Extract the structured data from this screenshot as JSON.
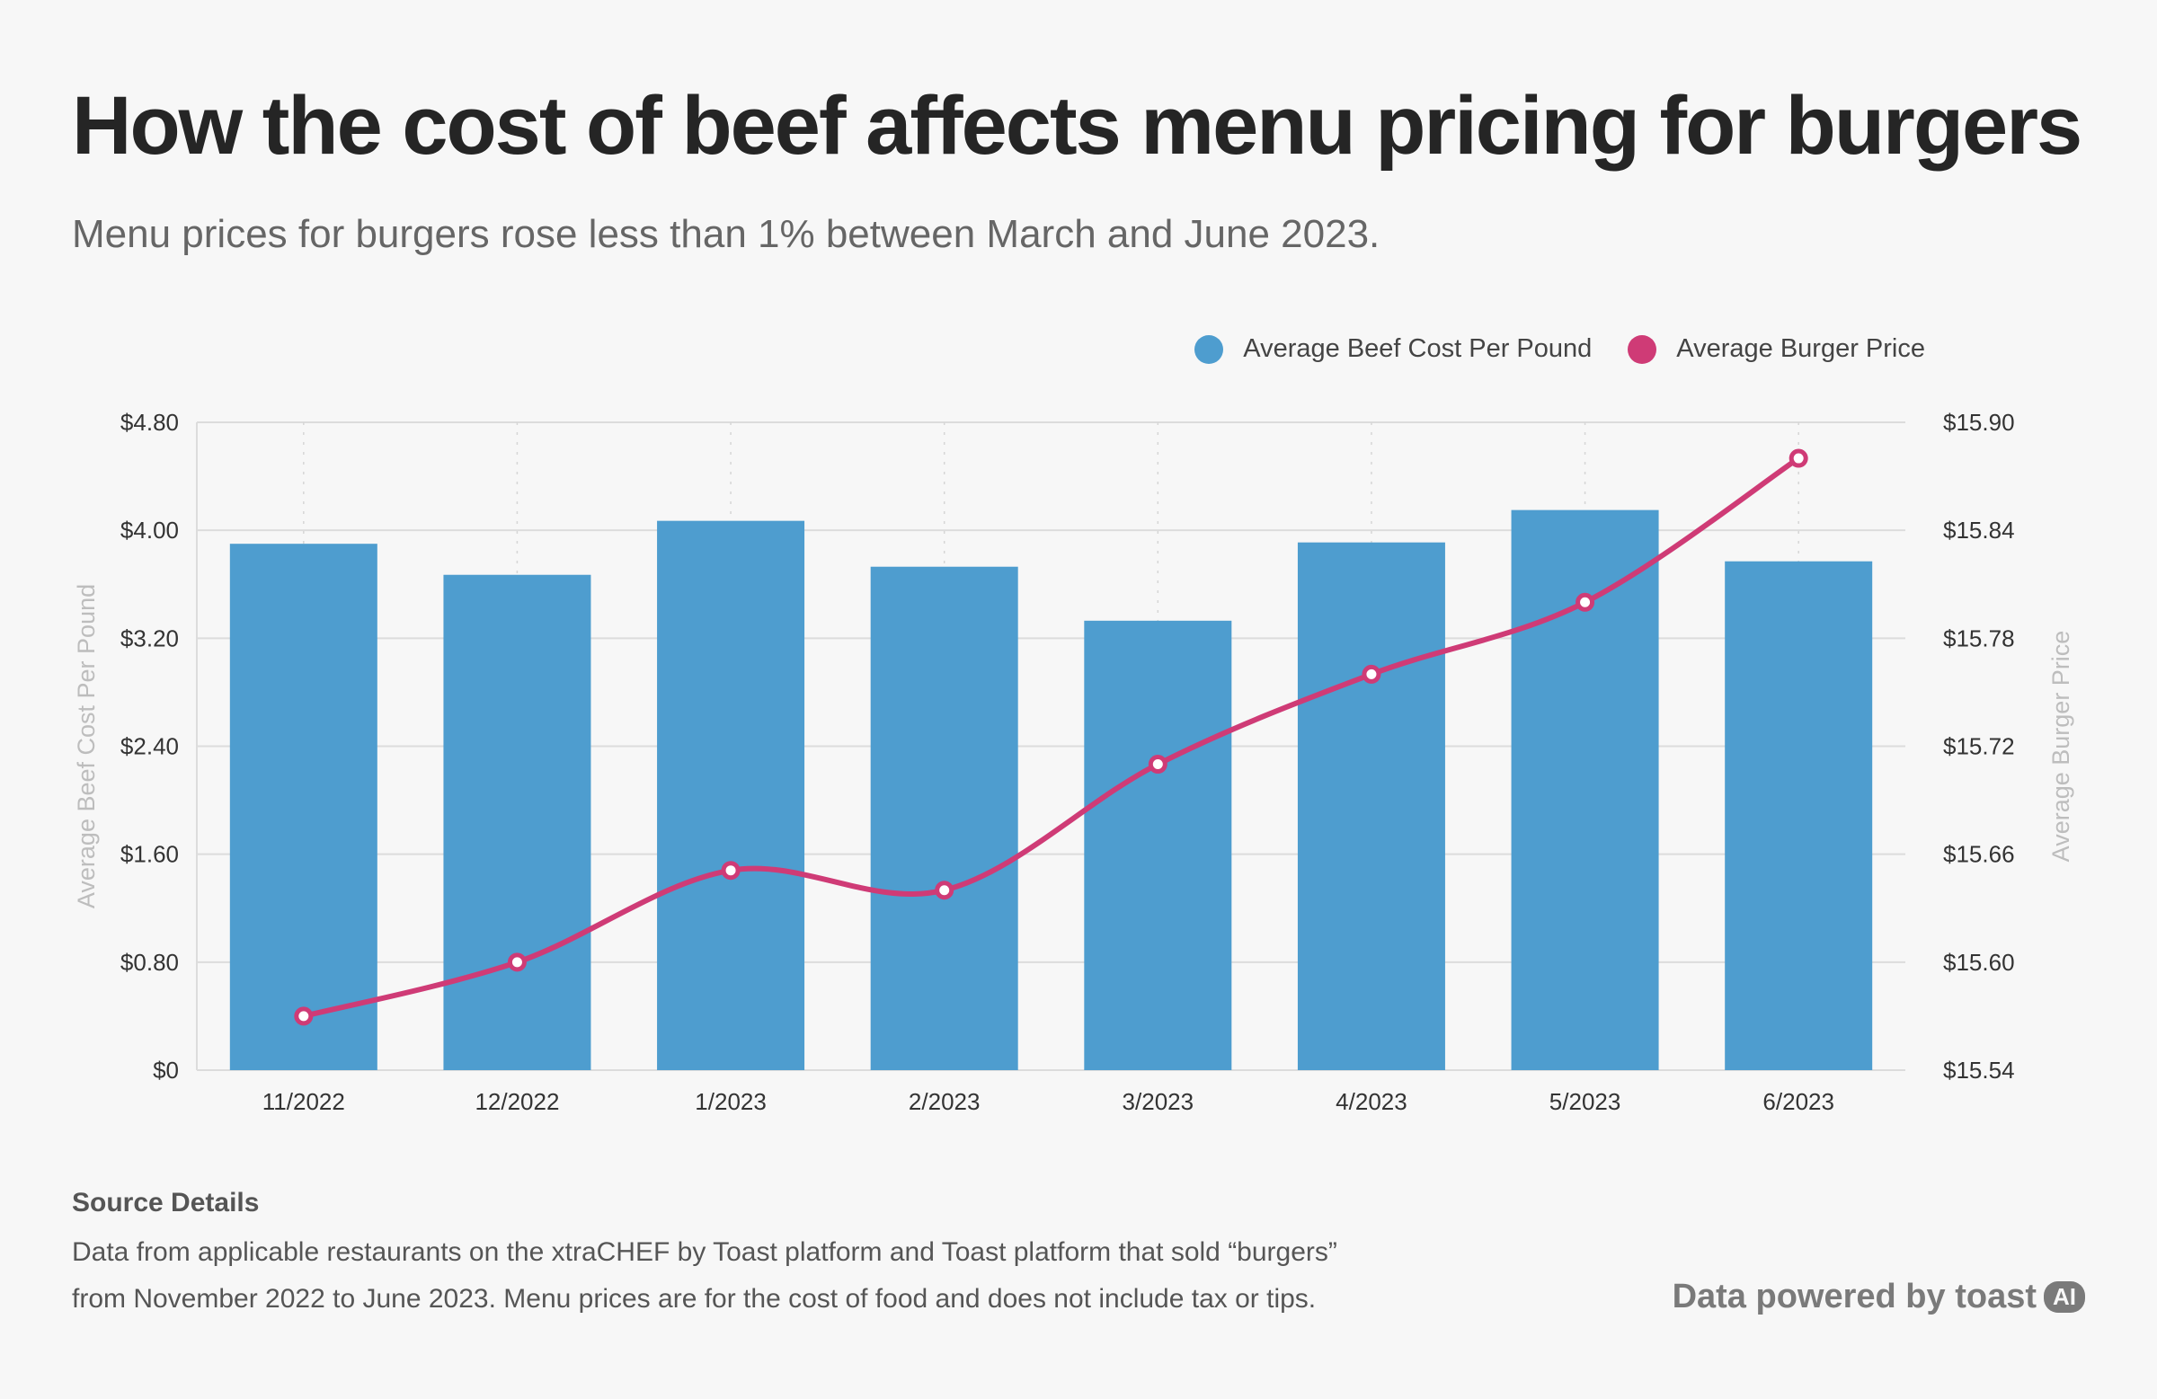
{
  "title": "How the cost of beef affects menu pricing for burgers",
  "subtitle": "Menu prices for burgers rose less than 1% between March and June 2023.",
  "colors": {
    "bar": "#4e9dcf",
    "line": "#cf3b76",
    "background": "#f7f7f7"
  },
  "chart_data": {
    "type": "bar+line",
    "categories": [
      "11/2022",
      "12/2022",
      "1/2023",
      "2/2023",
      "3/2023",
      "4/2023",
      "5/2023",
      "6/2023"
    ],
    "series": [
      {
        "name": "Average Beef Cost Per Pound",
        "type": "bar",
        "axis": "left",
        "values": [
          3.9,
          3.67,
          4.07,
          3.73,
          3.33,
          3.91,
          4.15,
          3.77
        ]
      },
      {
        "name": "Average Burger Price",
        "type": "line",
        "axis": "right",
        "values": [
          15.57,
          15.6,
          15.651,
          15.64,
          15.71,
          15.76,
          15.8,
          15.88
        ]
      }
    ],
    "left_axis": {
      "label": "Average Beef Cost Per Pound",
      "range": [
        0,
        4.8
      ],
      "ticks": [
        "$0",
        "$0.80",
        "$1.60",
        "$2.40",
        "$3.20",
        "$4.00",
        "$4.80"
      ]
    },
    "right_axis": {
      "label": "Average Burger Price",
      "range": [
        15.54,
        15.9
      ],
      "ticks": [
        "$15.54",
        "$15.60",
        "$15.66",
        "$15.72",
        "$15.78",
        "$15.84",
        "$15.90"
      ]
    },
    "grid": true,
    "legend": "top-right"
  },
  "source": {
    "heading": "Source Details",
    "line1": "Data from applicable restaurants on the xtraCHEF by Toast platform and Toast platform that sold “burgers”",
    "line2": "from November 2022 to June 2023. Menu prices are for the cost of food and does not include tax or tips."
  },
  "brand": {
    "text": "Data powered by toast",
    "badge": "AI"
  }
}
